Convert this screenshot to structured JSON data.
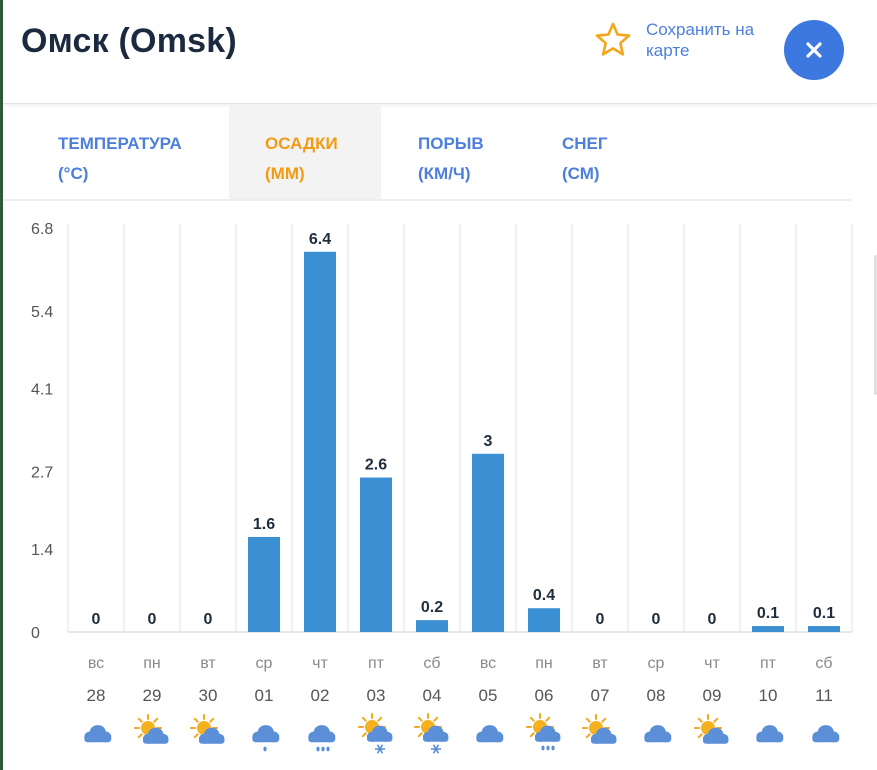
{
  "header": {
    "title": "Омск (Omsk)",
    "save_label": "Сохранить на карте",
    "save_icon": "star-outline-icon",
    "close_icon": "close-icon"
  },
  "tabs": [
    {
      "line1": "ТЕМПЕРАТУРА",
      "line2": "(°C)",
      "active": false
    },
    {
      "line1": "ОСАДКИ",
      "line2": "(ММ)",
      "active": true
    },
    {
      "line1": "ПОРЫВ",
      "line2": "(КМ/Ч)",
      "active": false
    },
    {
      "line1": "СНЕГ",
      "line2": "(СМ)",
      "active": false
    }
  ],
  "colors": {
    "accent": "#4d7fdc",
    "active_tab": "#f39a12",
    "bar": "#3b90d4",
    "close_button": "#3d78e0",
    "star": "#f3a71b"
  },
  "chart_data": {
    "type": "bar",
    "title": "",
    "xlabel": "",
    "ylabel": "",
    "ylim": [
      0,
      6.8
    ],
    "yticks": [
      "0",
      "1.4",
      "2.7",
      "4.1",
      "5.4",
      "6.8"
    ],
    "grid": true,
    "days": [
      "вс",
      "пн",
      "вт",
      "ср",
      "чт",
      "пт",
      "сб",
      "вс",
      "пн",
      "вт",
      "ср",
      "чт",
      "пт",
      "сб"
    ],
    "dates": [
      "28",
      "29",
      "30",
      "01",
      "02",
      "03",
      "04",
      "05",
      "06",
      "07",
      "08",
      "09",
      "10",
      "11"
    ],
    "values": [
      0,
      0,
      0,
      1.6,
      6.4,
      2.6,
      0.2,
      3,
      0.4,
      0,
      0,
      0,
      0.1,
      0.1
    ],
    "labels": [
      "0",
      "0",
      "0",
      "1.6",
      "6.4",
      "2.6",
      "0.2",
      "3",
      "0.4",
      "0",
      "0",
      "0",
      "0.1",
      "0.1"
    ],
    "icons": [
      "cloud-icon",
      "partly-sunny-icon",
      "partly-sunny-icon",
      "cloud-drizzle-icon",
      "cloud-rain-icon",
      "sun-snow-icon",
      "sun-snow-icon",
      "cloud-icon",
      "sun-rain-icon",
      "partly-sunny-icon",
      "cloud-icon",
      "partly-sunny-icon",
      "cloud-icon",
      "cloud-icon"
    ]
  }
}
